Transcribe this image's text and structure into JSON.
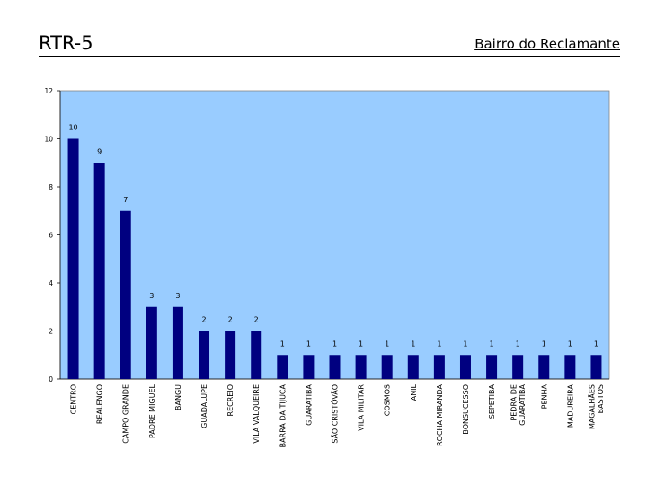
{
  "slide": {
    "title": "RTR-5",
    "subtitle": "Bairro do Reclamante"
  },
  "colors": {
    "plot_background": "#99ccff",
    "bar": "#000080"
  },
  "chart_data": {
    "type": "bar",
    "title": "",
    "xlabel": "",
    "ylabel": "",
    "ylim": [
      0,
      12
    ],
    "yticks": [
      0,
      2,
      4,
      6,
      8,
      10,
      12
    ],
    "grid": false,
    "legend": "none",
    "categories": [
      [
        "CENTRO"
      ],
      [
        "REALENGO"
      ],
      [
        "CAMPO GRANDE"
      ],
      [
        "PADRE MIGUEL"
      ],
      [
        "BANGU"
      ],
      [
        "GUADALUPE"
      ],
      [
        "RECREIO"
      ],
      [
        "VILA VALQUEIRE"
      ],
      [
        "BARRA DA TIJUCA"
      ],
      [
        "GUARATIBA"
      ],
      [
        "SÃO CRISTÓVÃO"
      ],
      [
        "VILA MILITAR"
      ],
      [
        "COSMOS"
      ],
      [
        "ANIL"
      ],
      [
        "ROCHA MIRANDA"
      ],
      [
        "BONSUCESSO"
      ],
      [
        "SEPETIBA"
      ],
      [
        "PEDRA DE",
        "GUARATIBA"
      ],
      [
        "PENHA"
      ],
      [
        "MADUREIRA"
      ],
      [
        "MAGALHÃES",
        "BASTOS"
      ]
    ],
    "values": [
      10,
      9,
      7,
      3,
      3,
      2,
      2,
      2,
      1,
      1,
      1,
      1,
      1,
      1,
      1,
      1,
      1,
      1,
      1,
      1,
      1
    ]
  }
}
